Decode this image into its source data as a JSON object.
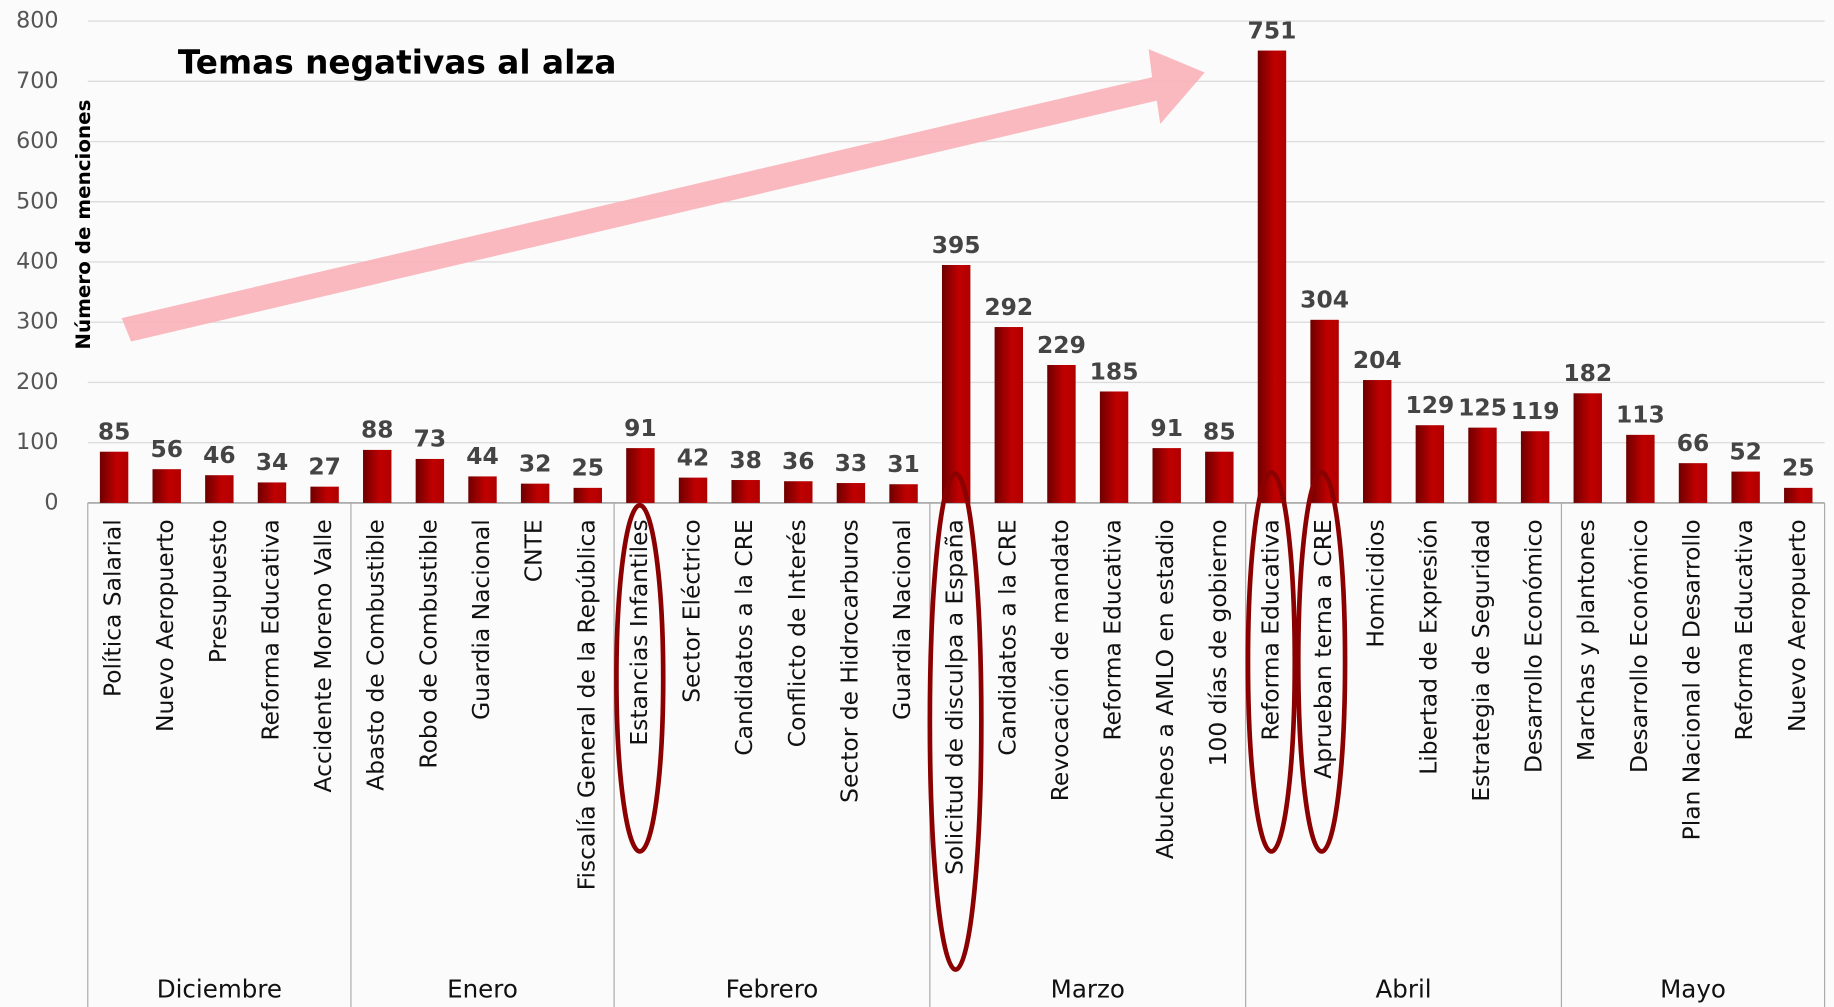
{
  "chart_data": {
    "type": "bar",
    "annotation": "Temas negativas al alza",
    "y_label": "Número de menciones",
    "color": "#c00000",
    "ylim": [
      0,
      800
    ],
    "yticks": [
      0,
      100,
      200,
      300,
      400,
      500,
      600,
      700,
      800
    ],
    "grid": true,
    "groups": [
      {
        "name": "Diciembre",
        "categories": [
          "Política Salarial",
          "Nuevo Aeropuerto",
          "Presupuesto",
          "Reforma Educativa",
          "Accidente Moreno Valle"
        ],
        "values": [
          85,
          56,
          46,
          34,
          27
        ]
      },
      {
        "name": "Enero",
        "categories": [
          "Abasto de Combustible",
          "Robo de Combustible",
          "Guardia Nacional",
          "CNTE",
          "Fiscalía General de la República"
        ],
        "values": [
          88,
          73,
          44,
          32,
          25
        ]
      },
      {
        "name": "Febrero",
        "categories": [
          "Estancias Infantiles",
          "Sector Eléctrico",
          "Candidatos a la CRE",
          "Conflicto de Interés",
          "Sector de Hidrocarburos",
          "Guardia Nacional"
        ],
        "values": [
          91,
          42,
          38,
          36,
          33,
          31
        ]
      },
      {
        "name": "Marzo",
        "categories": [
          "Solicitud de disculpa a España",
          "Candidatos a la CRE",
          "Revocación de mandato",
          "Reforma Educativa",
          "Abucheos a AMLO en estadio",
          "100 días de gobierno"
        ],
        "values": [
          395,
          292,
          229,
          185,
          91,
          85
        ]
      },
      {
        "name": "Abril",
        "categories": [
          "Reforma Educativa",
          "Aprueban terna a CRE",
          "Homicidios",
          "Libertad de Expresión",
          "Estrategia de Seguridad",
          "Desarrollo Económico"
        ],
        "values": [
          751,
          304,
          204,
          129,
          125,
          119
        ]
      },
      {
        "name": "Mayo",
        "categories": [
          "Marchas y plantones",
          "Desarrollo Económico",
          "Plan Nacional de Desarrollo",
          "Reforma Educativa",
          "Nuevo Aeropuerto"
        ],
        "values": [
          182,
          113,
          66,
          52,
          25
        ]
      }
    ]
  }
}
